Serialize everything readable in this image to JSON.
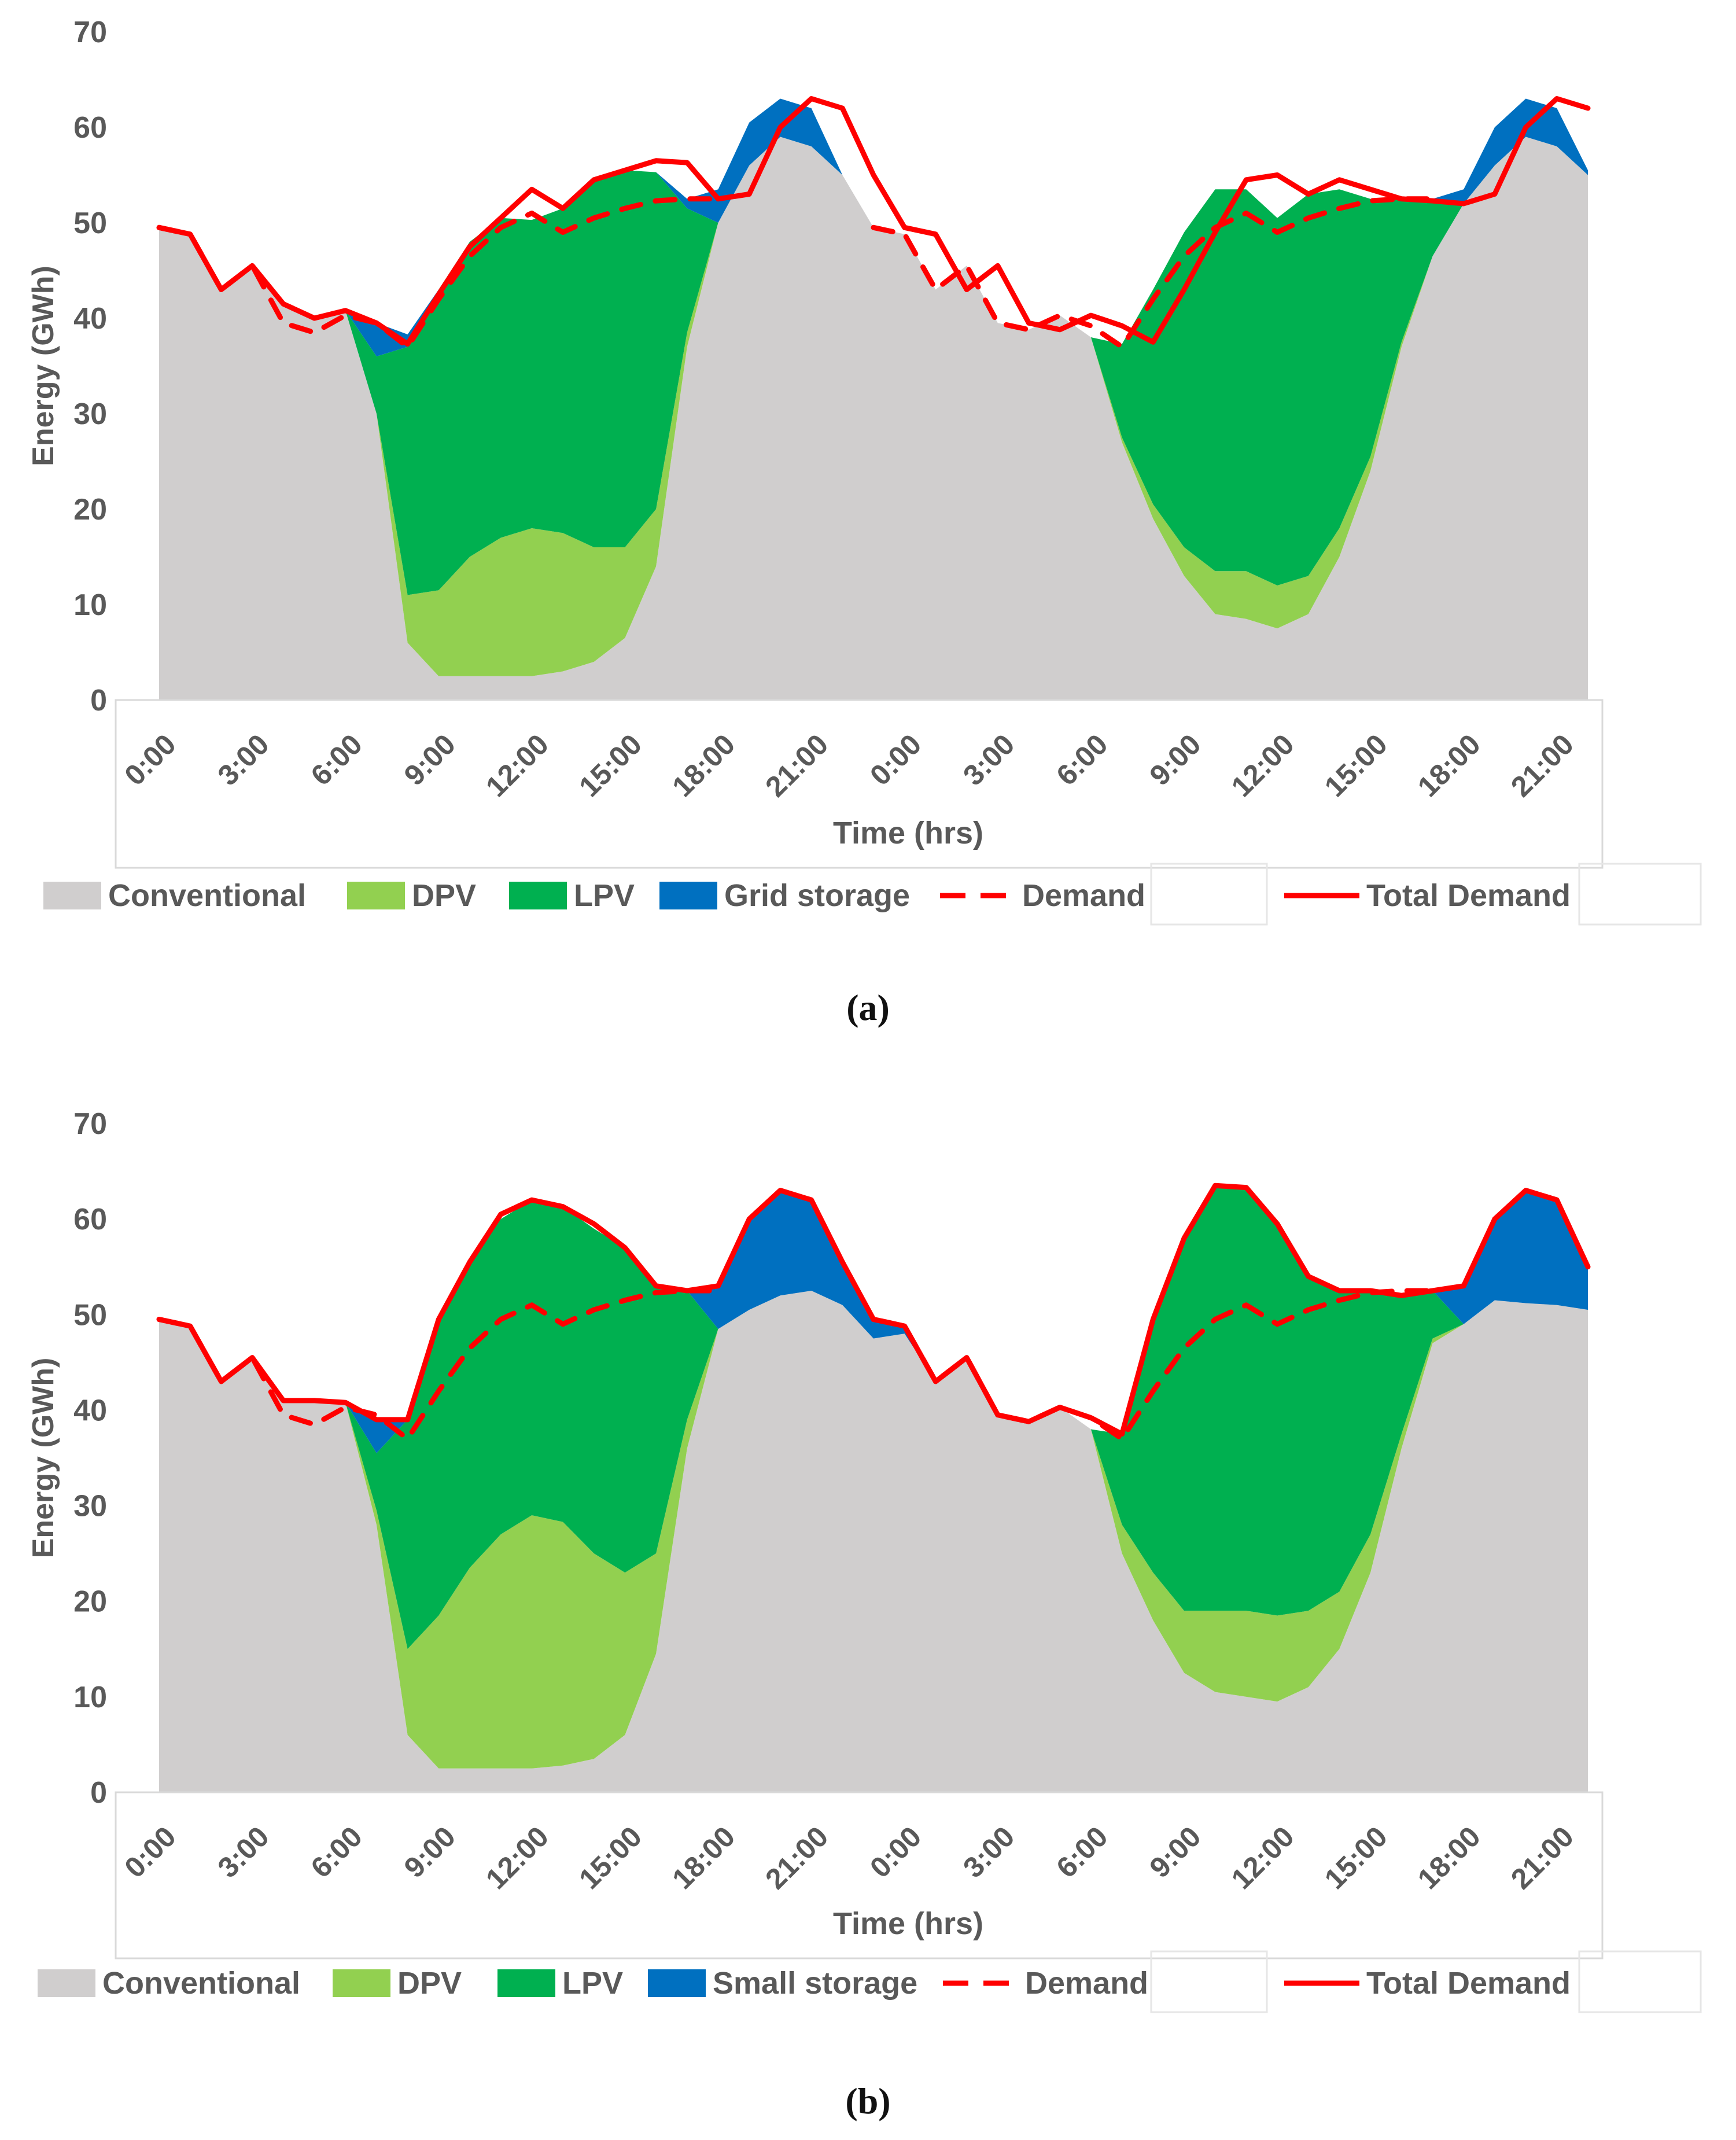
{
  "chart_data": [
    {
      "type": "area",
      "panel_label": "a",
      "xlabel": "Time (hrs)",
      "ylabel": "Energy (GWh)",
      "ylim": [
        0,
        70
      ],
      "yticks": [
        0,
        10,
        20,
        30,
        40,
        50,
        60,
        70
      ],
      "x_tick_labels": [
        "0:00",
        "3:00",
        "6:00",
        "9:00",
        "12:00",
        "15:00",
        "18:00",
        "21:00",
        "0:00",
        "3:00",
        "6:00",
        "9:00",
        "12:00",
        "15:00",
        "18:00",
        "21:00"
      ],
      "legend": [
        "Conventional",
        "DPV",
        "LPV",
        "Grid storage",
        "Demand",
        "Total Demand"
      ],
      "series": [
        {
          "name": "Conventional",
          "color": "#d0cece",
          "values": [
            49.5,
            48.8,
            43.0,
            45.5,
            41.5,
            40.0,
            40.8,
            30.0,
            6.0,
            2.5,
            2.5,
            2.5,
            2.5,
            3.0,
            4.0,
            6.5,
            14.0,
            37.0,
            50.0,
            56.0,
            59.0,
            58.0,
            55.0,
            49.5,
            48.8,
            43.0,
            45.5,
            39.5,
            38.8,
            40.3,
            38.0,
            27.0,
            19.0,
            13.0,
            9.0,
            8.5,
            7.5,
            9.0,
            15.0,
            24.0,
            37.0,
            46.5,
            52.0,
            56.0,
            59.0,
            58.0,
            55.0
          ]
        },
        {
          "name": "DPV",
          "color": "#92d050",
          "values": [
            0,
            0,
            0,
            0,
            0,
            0,
            0,
            0,
            5.0,
            9.0,
            12.5,
            14.5,
            15.5,
            14.5,
            12.0,
            9.5,
            6.0,
            1.5,
            0,
            0,
            0,
            0,
            0,
            0,
            0,
            0,
            0,
            0,
            0,
            0,
            0,
            0.5,
            1.5,
            3.0,
            4.5,
            5.0,
            4.5,
            4.0,
            3.0,
            1.5,
            0.5,
            0,
            0,
            0,
            0,
            0,
            0
          ]
        },
        {
          "name": "LPV",
          "color": "#00b050",
          "values": [
            0,
            0,
            0,
            0,
            0,
            0,
            0,
            6.0,
            26.0,
            31.5,
            33.0,
            33.5,
            32.3,
            34.0,
            38.5,
            39.5,
            35.3,
            13.0,
            0,
            0,
            0,
            0,
            0,
            0,
            0,
            0,
            0,
            0,
            0,
            0,
            0,
            9.8,
            22.5,
            33.0,
            40.0,
            40.0,
            38.5,
            40.0,
            35.5,
            27.0,
            15.0,
            6.0,
            0,
            0,
            0,
            0,
            0
          ]
        },
        {
          "name": "Grid storage",
          "color": "#0070c0",
          "values": [
            0,
            0,
            0,
            0,
            0,
            0,
            0,
            3.5,
            1.3,
            0,
            0,
            0,
            0,
            0,
            0,
            0,
            0,
            1.0,
            3.5,
            4.5,
            4.0,
            4.0,
            0,
            0,
            0,
            0,
            0,
            0,
            0,
            0,
            0,
            0,
            0,
            0,
            0,
            0,
            0,
            0,
            0,
            0,
            0,
            0,
            1.5,
            4.0,
            4.0,
            4.0,
            0.5
          ]
        },
        {
          "name": "Demand",
          "color": "#ff0000",
          "dashed": true,
          "values": [
            49.5,
            48.8,
            43.0,
            45.5,
            39.5,
            38.5,
            40.3,
            39.5,
            37.0,
            42.0,
            46.5,
            49.5,
            51.0,
            49.0,
            50.5,
            51.5,
            52.3,
            52.5,
            52.5,
            null,
            null,
            null,
            null,
            49.5,
            48.8,
            43.0,
            45.5,
            39.5,
            38.8,
            40.3,
            39.2,
            37.0,
            42.0,
            46.5,
            49.5,
            51.0,
            49.0,
            50.5,
            51.5,
            52.3,
            52.5,
            52.5,
            null,
            null,
            null,
            null,
            null
          ]
        },
        {
          "name": "Total Demand",
          "color": "#ff0000",
          "values": [
            49.5,
            48.8,
            43.0,
            45.5,
            41.5,
            40.0,
            40.8,
            39.5,
            37.3,
            42.5,
            47.5,
            50.5,
            53.5,
            51.5,
            54.5,
            55.5,
            56.5,
            56.3,
            52.5,
            53.0,
            60.0,
            63.0,
            62.0,
            55.0,
            49.5,
            48.8,
            43.0,
            45.5,
            39.5,
            38.8,
            40.3,
            39.2,
            37.5,
            43.0,
            49.0,
            54.5,
            55.0,
            53.0,
            54.5,
            53.5,
            52.5,
            52.3,
            52.0,
            53.0,
            60.0,
            63.0,
            62.0
          ]
        }
      ]
    },
    {
      "type": "area",
      "panel_label": "b",
      "xlabel": "Time (hrs)",
      "ylabel": "Energy (GWh)",
      "ylim": [
        0,
        70
      ],
      "yticks": [
        0,
        10,
        20,
        30,
        40,
        50,
        60,
        70
      ],
      "x_tick_labels": [
        "0:00",
        "3:00",
        "6:00",
        "9:00",
        "12:00",
        "15:00",
        "18:00",
        "21:00",
        "0:00",
        "3:00",
        "6:00",
        "9:00",
        "12:00",
        "15:00",
        "18:00",
        "21:00"
      ],
      "legend": [
        "Conventional",
        "DPV",
        "LPV",
        "Small storage",
        "Demand",
        "Total Demand"
      ],
      "series": [
        {
          "name": "Conventional",
          "color": "#d0cece",
          "values": [
            49.5,
            48.8,
            43.0,
            45.5,
            41.0,
            41.0,
            40.8,
            28.0,
            6.0,
            2.5,
            2.5,
            2.5,
            2.5,
            2.8,
            3.5,
            6.0,
            14.5,
            36.0,
            48.5,
            50.5,
            52.0,
            52.5,
            51.0,
            47.5,
            48.0,
            43.0,
            45.5,
            39.5,
            38.8,
            40.3,
            38.0,
            25.0,
            18.0,
            12.5,
            10.5,
            10.0,
            9.5,
            11.0,
            15.0,
            23.0,
            36.0,
            47.0,
            49.0,
            51.5,
            51.2,
            51.0,
            50.5
          ]
        },
        {
          "name": "DPV",
          "color": "#92d050",
          "values": [
            0,
            0,
            0,
            0,
            0,
            0,
            0,
            1.5,
            9.0,
            16.0,
            21.0,
            24.5,
            26.5,
            25.5,
            21.5,
            17.0,
            10.5,
            3.0,
            0,
            0,
            0,
            0,
            0,
            0,
            0,
            0,
            0,
            0,
            0,
            0,
            0,
            3.0,
            5.0,
            6.5,
            8.5,
            9.0,
            9.0,
            8.0,
            6.0,
            4.0,
            1.5,
            0.5,
            0,
            0,
            0,
            0,
            0
          ]
        },
        {
          "name": "LPV",
          "color": "#00b050",
          "values": [
            0,
            0,
            0,
            0,
            0,
            0,
            0,
            6.0,
            24.0,
            31.0,
            32.0,
            33.0,
            33.0,
            33.0,
            34.0,
            34.0,
            28.0,
            13.5,
            0,
            0,
            0,
            0,
            0,
            0,
            0,
            0,
            0,
            0,
            0,
            0,
            0,
            9.5,
            26.0,
            39.0,
            44.5,
            44.3,
            41.0,
            35.0,
            31.5,
            25.5,
            14.5,
            5.0,
            0,
            0,
            0,
            0,
            0
          ]
        },
        {
          "name": "Small storage",
          "color": "#0070c0",
          "values": [
            0,
            0,
            0,
            0,
            0,
            0,
            0,
            3.5,
            0,
            0,
            0,
            0,
            0,
            0,
            0,
            0,
            0,
            0,
            4.5,
            9.5,
            11.0,
            9.5,
            4.5,
            2.0,
            0.8,
            0,
            0,
            0,
            0,
            0,
            0,
            0,
            0,
            0,
            0,
            0,
            0,
            0,
            0,
            0,
            0,
            0,
            4.0,
            8.5,
            11.8,
            11.0,
            4.5
          ]
        },
        {
          "name": "Demand",
          "color": "#ff0000",
          "dashed": true,
          "values": [
            49.5,
            48.8,
            43.0,
            45.5,
            39.5,
            38.5,
            40.3,
            39.5,
            37.0,
            42.0,
            46.5,
            49.5,
            51.0,
            49.0,
            50.5,
            51.5,
            52.3,
            52.5,
            52.5,
            null,
            null,
            null,
            null,
            49.5,
            48.8,
            43.0,
            45.5,
            39.5,
            38.8,
            40.3,
            39.2,
            37.0,
            42.0,
            46.5,
            49.5,
            51.0,
            49.0,
            50.5,
            51.5,
            52.3,
            52.5,
            52.5,
            null,
            null,
            null,
            null,
            null
          ]
        },
        {
          "name": "Total Demand",
          "color": "#ff0000",
          "values": [
            49.5,
            48.8,
            43.0,
            45.5,
            41.0,
            41.0,
            40.8,
            39.0,
            39.0,
            49.5,
            55.5,
            60.5,
            62.0,
            61.3,
            59.5,
            57.0,
            53.0,
            52.5,
            53.0,
            60.0,
            63.0,
            62.0,
            55.5,
            49.5,
            48.8,
            43.0,
            45.5,
            39.5,
            38.8,
            40.3,
            39.2,
            37.5,
            49.5,
            58.0,
            63.5,
            63.3,
            59.5,
            54.0,
            52.5,
            52.5,
            52.0,
            52.5,
            53.0,
            60.0,
            63.0,
            62.0,
            55.0
          ]
        }
      ]
    }
  ],
  "captions": {
    "a": "(a)",
    "b": "(b)"
  }
}
